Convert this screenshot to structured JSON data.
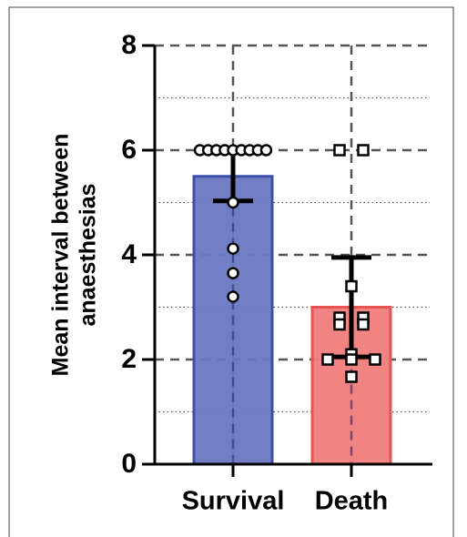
{
  "chart_data": {
    "type": "bar",
    "y_label_lines": [
      "Mean interval between",
      "anaesthesias"
    ],
    "categories": [
      "Survival",
      "Death"
    ],
    "values": [
      5.5,
      3.0
    ],
    "errors": [
      0.47,
      0.95
    ],
    "colors": [
      "#6b78c2",
      "#f07c7c"
    ],
    "edge_colors": [
      "#3c4fa8",
      "#e65353"
    ],
    "points": [
      [
        6,
        6,
        6,
        6,
        6,
        6,
        6,
        6,
        6,
        5.0,
        4.12,
        3.65,
        3.2
      ],
      [
        6,
        6,
        3.4,
        2.8,
        2.8,
        2.67,
        2.67,
        2.1,
        2.0,
        2.0,
        2.0,
        1.67
      ]
    ],
    "point_shapes": [
      "circle",
      "square"
    ],
    "ylim": [
      0,
      8
    ],
    "yticks": [
      0,
      2,
      4,
      6,
      8
    ],
    "minor_yticks": [
      1,
      3,
      5,
      7
    ],
    "grid": true
  }
}
